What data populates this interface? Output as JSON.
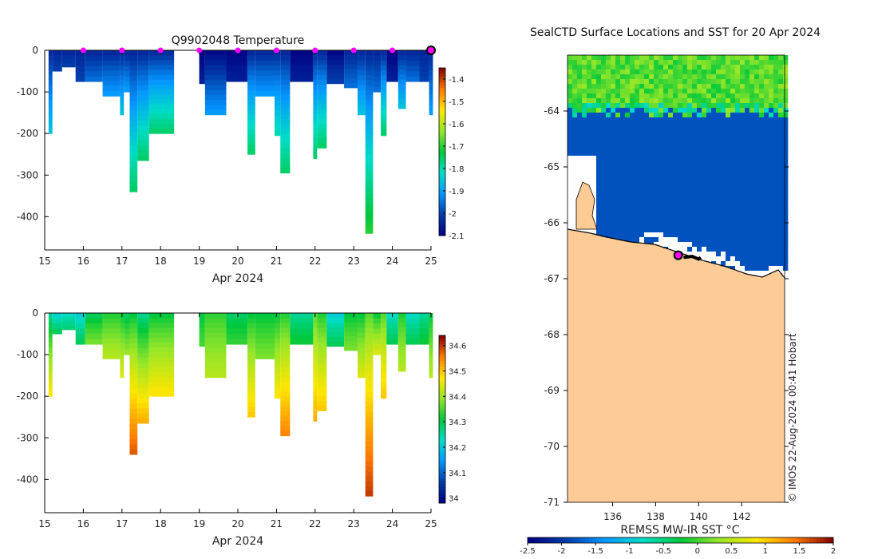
{
  "chart_data": [
    {
      "type": "heatmap",
      "name": "temperature-profile",
      "title": "Q9902048  Temperature",
      "xlabel": "Apr 2024",
      "x_ticks": [
        "15",
        "16",
        "17",
        "18",
        "19",
        "20",
        "21",
        "22",
        "23",
        "24",
        "25"
      ],
      "xlim": [
        15,
        25
      ],
      "ylim": [
        -480,
        0
      ],
      "y_ticks": [
        "0",
        "-100",
        "-200",
        "-300",
        "-400"
      ],
      "y_tick_values": [
        0,
        -100,
        -200,
        -300,
        -400
      ],
      "colorbar": {
        "min": -2.1,
        "max": -1.35,
        "ticks": [
          "-1.4",
          "-1.5",
          "-1.6",
          "-1.7",
          "-1.8",
          "-1.9",
          "-2",
          "-2.1"
        ],
        "tick_values": [
          -1.4,
          -1.5,
          -1.6,
          -1.7,
          -1.8,
          -1.9,
          -2,
          -2.1
        ]
      },
      "surface_markers": [
        16,
        17,
        18,
        19,
        20,
        21,
        22,
        23,
        24
      ],
      "latest_marker": 25,
      "profiles": [
        {
          "x0": 15.1,
          "x1": 15.2,
          "depth": 200,
          "v_surface": -2.05,
          "v_bottom": -1.85
        },
        {
          "x0": 15.2,
          "x1": 15.45,
          "depth": 50,
          "v_surface": -2.05,
          "v_bottom": -2.0
        },
        {
          "x0": 15.45,
          "x1": 15.8,
          "depth": 40,
          "v_surface": -2.05,
          "v_bottom": -2.0
        },
        {
          "x0": 15.8,
          "x1": 16.05,
          "depth": 75,
          "v_surface": -2.05,
          "v_bottom": -2.0
        },
        {
          "x0": 16.05,
          "x1": 16.5,
          "depth": 75,
          "v_surface": -2.05,
          "v_bottom": -1.95
        },
        {
          "x0": 16.5,
          "x1": 16.95,
          "depth": 110,
          "v_surface": -2.05,
          "v_bottom": -1.9
        },
        {
          "x0": 16.95,
          "x1": 17.05,
          "depth": 155,
          "v_surface": -2.05,
          "v_bottom": -1.85
        },
        {
          "x0": 17.05,
          "x1": 17.2,
          "depth": 100,
          "v_surface": -2.05,
          "v_bottom": -1.9
        },
        {
          "x0": 17.2,
          "x1": 17.4,
          "depth": 340,
          "v_surface": -2.05,
          "v_bottom": -1.75
        },
        {
          "x0": 17.4,
          "x1": 17.7,
          "depth": 265,
          "v_surface": -2.05,
          "v_bottom": -1.75
        },
        {
          "x0": 17.7,
          "x1": 18.35,
          "depth": 200,
          "v_surface": -2.05,
          "v_bottom": -1.75
        },
        {
          "x0": 19.0,
          "x1": 19.15,
          "depth": 80,
          "v_surface": -2.1,
          "v_bottom": -2.05
        },
        {
          "x0": 19.15,
          "x1": 19.7,
          "depth": 155,
          "v_surface": -2.1,
          "v_bottom": -1.9
        },
        {
          "x0": 19.7,
          "x1": 20.25,
          "depth": 75,
          "v_surface": -2.1,
          "v_bottom": -2.05
        },
        {
          "x0": 20.25,
          "x1": 20.45,
          "depth": 250,
          "v_surface": -2.05,
          "v_bottom": -1.75
        },
        {
          "x0": 20.45,
          "x1": 20.95,
          "depth": 110,
          "v_surface": -2.05,
          "v_bottom": -1.9
        },
        {
          "x0": 20.95,
          "x1": 21.1,
          "depth": 205,
          "v_surface": -2.05,
          "v_bottom": -1.8
        },
        {
          "x0": 21.1,
          "x1": 21.35,
          "depth": 295,
          "v_surface": -2.05,
          "v_bottom": -1.75
        },
        {
          "x0": 21.35,
          "x1": 21.95,
          "depth": 75,
          "v_surface": -2.1,
          "v_bottom": -2.05
        },
        {
          "x0": 21.95,
          "x1": 22.05,
          "depth": 260,
          "v_surface": -2.05,
          "v_bottom": -1.75
        },
        {
          "x0": 22.05,
          "x1": 22.3,
          "depth": 235,
          "v_surface": -2.05,
          "v_bottom": -1.75
        },
        {
          "x0": 22.3,
          "x1": 22.75,
          "depth": 80,
          "v_surface": -2.1,
          "v_bottom": -2.0
        },
        {
          "x0": 22.75,
          "x1": 23.1,
          "depth": 90,
          "v_surface": -2.05,
          "v_bottom": -1.95
        },
        {
          "x0": 23.1,
          "x1": 23.3,
          "depth": 155,
          "v_surface": -2.05,
          "v_bottom": -1.85
        },
        {
          "x0": 23.3,
          "x1": 23.5,
          "depth": 440,
          "v_surface": -2.05,
          "v_bottom": -1.7
        },
        {
          "x0": 23.5,
          "x1": 23.7,
          "depth": 100,
          "v_surface": -2.05,
          "v_bottom": -1.95
        },
        {
          "x0": 23.7,
          "x1": 23.85,
          "depth": 205,
          "v_surface": -2.05,
          "v_bottom": -1.75
        },
        {
          "x0": 23.85,
          "x1": 24.15,
          "depth": 75,
          "v_surface": -2.1,
          "v_bottom": -2.05
        },
        {
          "x0": 24.15,
          "x1": 24.35,
          "depth": 140,
          "v_surface": -2.05,
          "v_bottom": -1.85
        },
        {
          "x0": 24.35,
          "x1": 24.7,
          "depth": 75,
          "v_surface": -2.05,
          "v_bottom": -1.95
        },
        {
          "x0": 24.7,
          "x1": 24.95,
          "depth": 75,
          "v_surface": -2.05,
          "v_bottom": -2.0
        },
        {
          "x0": 24.95,
          "x1": 25.05,
          "depth": 155,
          "v_surface": -2.05,
          "v_bottom": -1.9
        }
      ]
    },
    {
      "type": "heatmap",
      "name": "salinity-profile",
      "title": "",
      "xlabel": "Apr 2024",
      "x_ticks": [
        "15",
        "16",
        "17",
        "18",
        "19",
        "20",
        "21",
        "22",
        "23",
        "24",
        "25"
      ],
      "xlim": [
        15,
        25
      ],
      "ylim": [
        -480,
        0
      ],
      "y_ticks": [
        "0",
        "-100",
        "-200",
        "-300",
        "-400"
      ],
      "y_tick_values": [
        0,
        -100,
        -200,
        -300,
        -400
      ],
      "colorbar": {
        "min": 33.98,
        "max": 34.64,
        "ticks": [
          "34.6",
          "34.5",
          "34.4",
          "34.3",
          "34.2",
          "34.1",
          "34"
        ],
        "tick_values": [
          34.6,
          34.5,
          34.4,
          34.3,
          34.2,
          34.1,
          34.0
        ]
      },
      "profiles": [
        {
          "x0": 15.1,
          "x1": 15.2,
          "depth": 200,
          "v_surface": 34.25,
          "v_bottom": 34.48
        },
        {
          "x0": 15.2,
          "x1": 15.45,
          "depth": 50,
          "v_surface": 34.2,
          "v_bottom": 34.3
        },
        {
          "x0": 15.45,
          "x1": 15.8,
          "depth": 40,
          "v_surface": 34.22,
          "v_bottom": 34.28
        },
        {
          "x0": 15.8,
          "x1": 16.05,
          "depth": 75,
          "v_surface": 34.2,
          "v_bottom": 34.3
        },
        {
          "x0": 16.05,
          "x1": 16.5,
          "depth": 75,
          "v_surface": 34.28,
          "v_bottom": 34.38
        },
        {
          "x0": 16.5,
          "x1": 16.95,
          "depth": 110,
          "v_surface": 34.32,
          "v_bottom": 34.42
        },
        {
          "x0": 16.95,
          "x1": 17.05,
          "depth": 155,
          "v_surface": 34.3,
          "v_bottom": 34.45
        },
        {
          "x0": 17.05,
          "x1": 17.2,
          "depth": 100,
          "v_surface": 34.28,
          "v_bottom": 34.4
        },
        {
          "x0": 17.2,
          "x1": 17.4,
          "depth": 340,
          "v_surface": 34.3,
          "v_bottom": 34.58
        },
        {
          "x0": 17.4,
          "x1": 17.7,
          "depth": 265,
          "v_surface": 34.25,
          "v_bottom": 34.52
        },
        {
          "x0": 17.7,
          "x1": 18.35,
          "depth": 200,
          "v_surface": 34.3,
          "v_bottom": 34.48
        },
        {
          "x0": 19.0,
          "x1": 19.15,
          "depth": 80,
          "v_surface": 34.3,
          "v_bottom": 34.35
        },
        {
          "x0": 19.15,
          "x1": 19.7,
          "depth": 155,
          "v_surface": 34.33,
          "v_bottom": 34.42
        },
        {
          "x0": 19.7,
          "x1": 20.25,
          "depth": 75,
          "v_surface": 34.28,
          "v_bottom": 34.34
        },
        {
          "x0": 20.25,
          "x1": 20.45,
          "depth": 250,
          "v_surface": 34.3,
          "v_bottom": 34.5
        },
        {
          "x0": 20.45,
          "x1": 20.95,
          "depth": 110,
          "v_surface": 34.3,
          "v_bottom": 34.38
        },
        {
          "x0": 20.95,
          "x1": 21.1,
          "depth": 205,
          "v_surface": 34.3,
          "v_bottom": 34.48
        },
        {
          "x0": 21.1,
          "x1": 21.35,
          "depth": 295,
          "v_surface": 34.32,
          "v_bottom": 34.55
        },
        {
          "x0": 21.35,
          "x1": 21.95,
          "depth": 75,
          "v_surface": 34.25,
          "v_bottom": 34.32
        },
        {
          "x0": 21.95,
          "x1": 22.05,
          "depth": 260,
          "v_surface": 34.35,
          "v_bottom": 34.52
        },
        {
          "x0": 22.05,
          "x1": 22.3,
          "depth": 235,
          "v_surface": 34.32,
          "v_bottom": 34.5
        },
        {
          "x0": 22.3,
          "x1": 22.75,
          "depth": 80,
          "v_surface": 34.2,
          "v_bottom": 34.3
        },
        {
          "x0": 22.75,
          "x1": 23.1,
          "depth": 90,
          "v_surface": 34.3,
          "v_bottom": 34.38
        },
        {
          "x0": 23.1,
          "x1": 23.3,
          "depth": 155,
          "v_surface": 34.3,
          "v_bottom": 34.45
        },
        {
          "x0": 23.3,
          "x1": 23.5,
          "depth": 440,
          "v_surface": 34.35,
          "v_bottom": 34.6
        },
        {
          "x0": 23.5,
          "x1": 23.7,
          "depth": 100,
          "v_surface": 34.3,
          "v_bottom": 34.45
        },
        {
          "x0": 23.7,
          "x1": 23.85,
          "depth": 205,
          "v_surface": 34.35,
          "v_bottom": 34.5
        },
        {
          "x0": 23.85,
          "x1": 24.15,
          "depth": 75,
          "v_surface": 34.22,
          "v_bottom": 34.3
        },
        {
          "x0": 24.15,
          "x1": 24.35,
          "depth": 140,
          "v_surface": 34.32,
          "v_bottom": 34.42
        },
        {
          "x0": 24.35,
          "x1": 24.7,
          "depth": 75,
          "v_surface": 34.22,
          "v_bottom": 34.3
        },
        {
          "x0": 24.7,
          "x1": 24.95,
          "depth": 75,
          "v_surface": 34.25,
          "v_bottom": 34.32
        },
        {
          "x0": 24.95,
          "x1": 25.05,
          "depth": 155,
          "v_surface": 34.3,
          "v_bottom": 34.42
        }
      ]
    },
    {
      "type": "heatmap",
      "name": "sst-map",
      "title": "SealCTD Surface Locations and SST for 20 Apr 2024",
      "x_ticks": [
        "136",
        "138",
        "140",
        "142"
      ],
      "x_tick_values": [
        136,
        138,
        140,
        142
      ],
      "xlim": [
        133.9,
        144.0
      ],
      "y_ticks": [
        "-64",
        "-65",
        "-66",
        "-67",
        "-68",
        "-69",
        "-70",
        "-71"
      ],
      "y_tick_values": [
        -64,
        -65,
        -66,
        -67,
        -68,
        -69,
        -70,
        -71
      ],
      "ylim": [
        -71.0,
        -63.0
      ],
      "colorbar_label": "REMSS MW-IR SST °C",
      "colorbar": {
        "min": -2.5,
        "max": 2,
        "ticks": [
          "-2.5",
          "-2",
          "-1.5",
          "-1",
          "-0.5",
          "0",
          "0.5",
          "1",
          "1.5",
          "2"
        ],
        "tick_values": [
          -2.5,
          -2,
          -1.5,
          -1,
          -0.5,
          0,
          0.5,
          1,
          1.5,
          2
        ]
      },
      "land_color": "#fccb96",
      "ice_sst_value": -1.8,
      "track": [
        [
          139.3,
          -66.62
        ],
        [
          139.7,
          -66.6
        ],
        [
          140.0,
          -66.65
        ],
        [
          140.1,
          -66.62
        ]
      ],
      "current_location": [
        139.05,
        -66.58
      ],
      "credit": "© IMOS 22-Aug-2024 00:41 Hobart"
    }
  ]
}
